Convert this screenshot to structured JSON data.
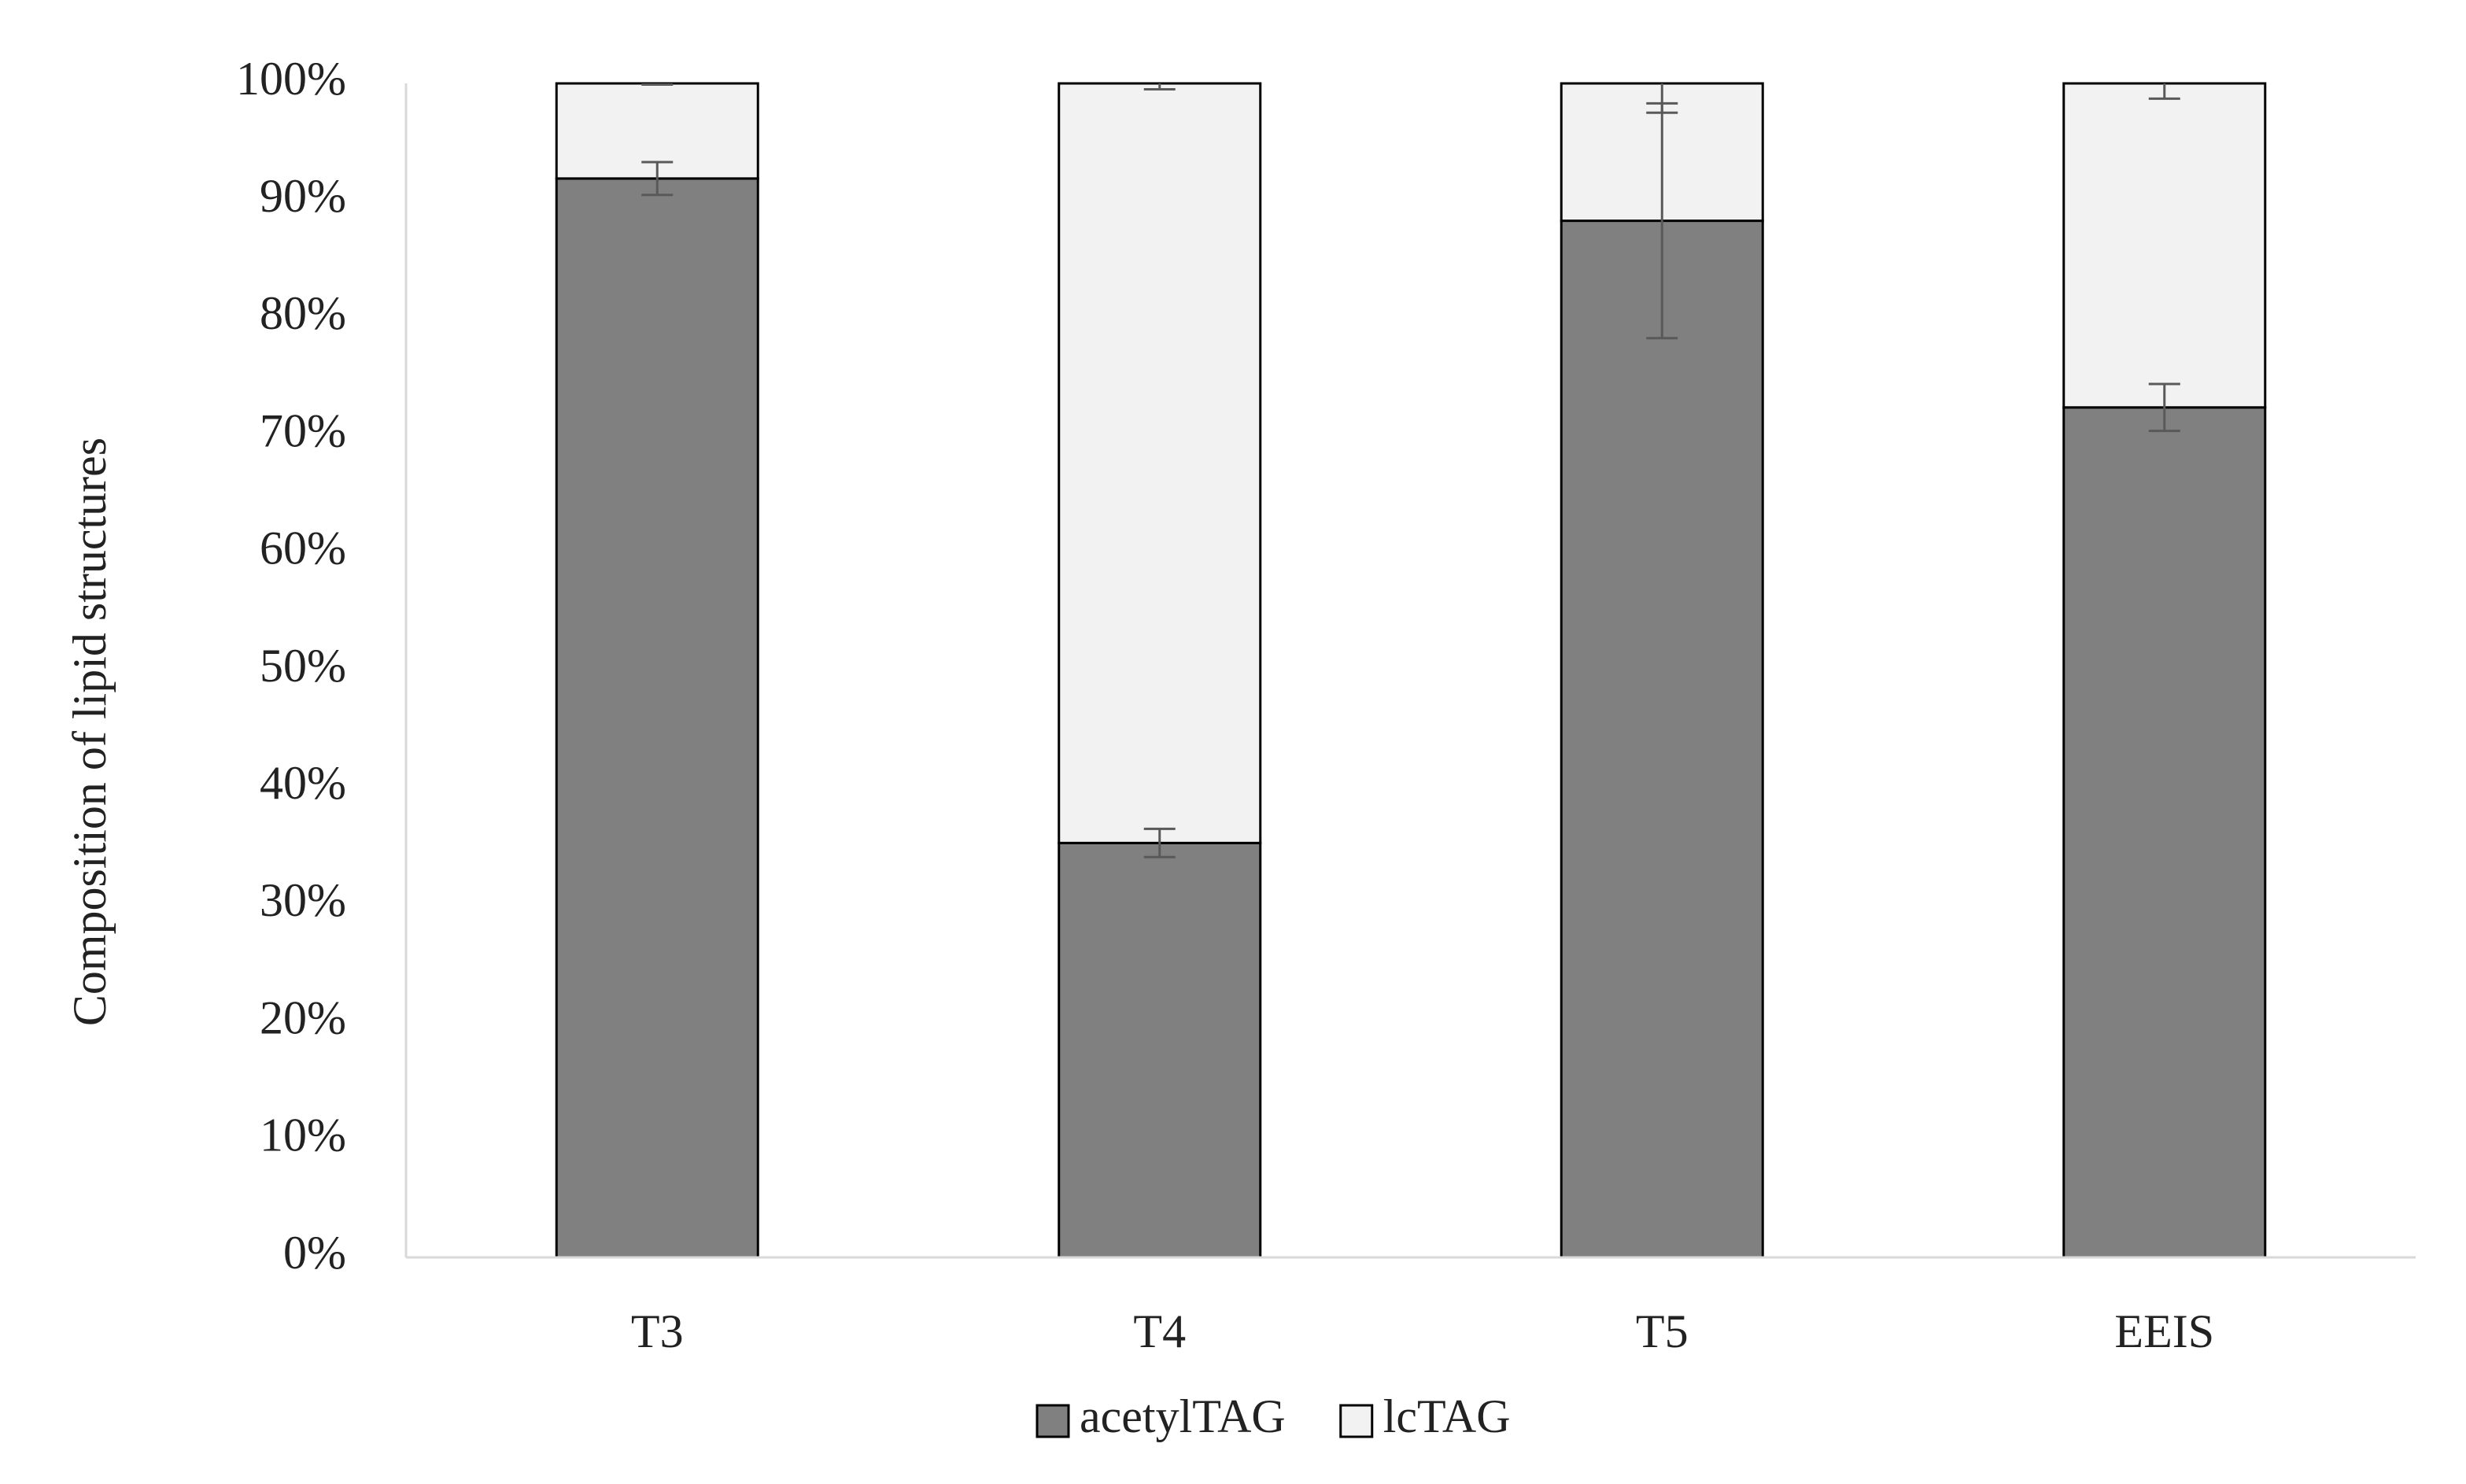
{
  "chart_data": {
    "type": "stacked_bar",
    "y_label": "Composition of lipid structures",
    "categories": [
      "T3",
      "T4",
      "T5",
      "EEIS"
    ],
    "series": [
      {
        "name": "acetylTAG",
        "color": "#808080",
        "values": [
          91.9,
          35.3,
          88.3,
          72.4
        ],
        "errors": [
          1.4,
          1.2,
          10,
          2
        ]
      },
      {
        "name": "lcTAG",
        "color": "#f2f2f2",
        "values": [
          8.1,
          64.7,
          11.7,
          27.6
        ],
        "errors": [
          0.1,
          0.5,
          2.5,
          1.3
        ]
      }
    ],
    "ylim": [
      0,
      100
    ],
    "yticks": [
      {
        "value": 0,
        "label": "0%"
      },
      {
        "value": 10,
        "label": "10%"
      },
      {
        "value": 20,
        "label": "20%"
      },
      {
        "value": 30,
        "label": "30%"
      },
      {
        "value": 40,
        "label": "40%"
      },
      {
        "value": 50,
        "label": "50%"
      },
      {
        "value": 60,
        "label": "60%"
      },
      {
        "value": 70,
        "label": "70%"
      },
      {
        "value": 80,
        "label": "80%"
      },
      {
        "value": 90,
        "label": "90%"
      },
      {
        "value": 100,
        "label": "100%"
      }
    ],
    "grid": false,
    "legend": "bottom"
  }
}
